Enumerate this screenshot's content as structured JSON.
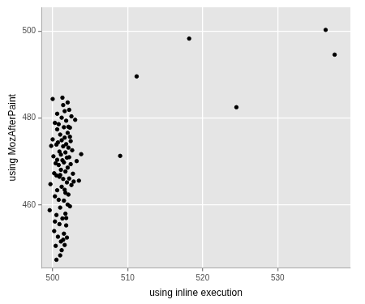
{
  "chart_data": {
    "type": "scatter",
    "x_label": "using inline execution",
    "y_label": "using MozAfterPaint",
    "x": [
      499.6,
      499.7,
      499.8,
      500.0,
      500.0,
      500.1,
      500.2,
      500.2,
      500.3,
      500.3,
      500.4,
      500.4,
      500.5,
      500.5,
      500.5,
      500.6,
      500.6,
      500.6,
      500.7,
      500.7,
      500.8,
      500.8,
      500.8,
      500.9,
      500.9,
      500.9,
      501.0,
      501.0,
      501.0,
      501.1,
      501.1,
      501.1,
      501.2,
      501.2,
      501.2,
      501.3,
      501.3,
      501.3,
      501.4,
      501.4,
      501.4,
      501.5,
      501.5,
      501.5,
      501.6,
      501.6,
      501.6,
      501.6,
      501.7,
      501.7,
      501.7,
      501.8,
      501.8,
      501.8,
      501.9,
      501.9,
      501.9,
      502.0,
      502.0,
      502.0,
      502.0,
      502.1,
      502.1,
      502.2,
      502.2,
      502.2,
      502.3,
      502.3,
      502.4,
      502.4,
      502.5,
      502.5,
      502.6,
      502.7,
      502.8,
      503.0,
      503.2,
      503.5,
      503.8,
      501.2,
      501.5,
      501.8,
      502.1,
      500.6,
      501.4,
      502.3,
      501.0,
      501.7,
      500.3,
      500.5,
      509.0,
      511.2,
      518.2,
      524.5,
      536.4,
      537.6
    ],
    "values": [
      458.8,
      464.8,
      473.6,
      484.4,
      475.1,
      471.2,
      467.3,
      454.0,
      478.9,
      462.0,
      469.6,
      450.6,
      473.9,
      466.8,
      457.7,
      477.4,
      470.4,
      463.4,
      452.7,
      474.4,
      469.2,
      461.2,
      478.6,
      455.6,
      472.3,
      466.5,
      476.2,
      459.4,
      448.4,
      471.6,
      468.1,
      451.6,
      474.9,
      464.2,
      480.1,
      470.3,
      456.9,
      484.7,
      473.5,
      466.0,
      452.0,
      477.9,
      469.8,
      461.0,
      481.6,
      475.5,
      463.5,
      450.8,
      472.1,
      467.7,
      458.0,
      479.4,
      474.0,
      455.3,
      470.9,
      465.2,
      452.5,
      483.6,
      476.6,
      468.6,
      460.1,
      473.2,
      462.4,
      481.9,
      471.0,
      466.1,
      477.8,
      459.7,
      474.7,
      469.4,
      480.4,
      464.6,
      472.6,
      467.2,
      465.4,
      479.6,
      470.1,
      465.6,
      471.7,
      449.6,
      453.4,
      457.0,
      478.0,
      481.0,
      483.0,
      475.7,
      466.9,
      462.8,
      456.2,
      447.4,
      471.3,
      489.6,
      498.3,
      482.5,
      500.3,
      494.6
    ],
    "color": "#000000",
    "marker": "circle",
    "xlim": [
      498.5,
      539.7
    ],
    "ylim": [
      445.5,
      505.5
    ],
    "xticks": [
      500,
      510,
      520,
      530
    ],
    "yticks": [
      460,
      480,
      500
    ],
    "grid": true
  }
}
